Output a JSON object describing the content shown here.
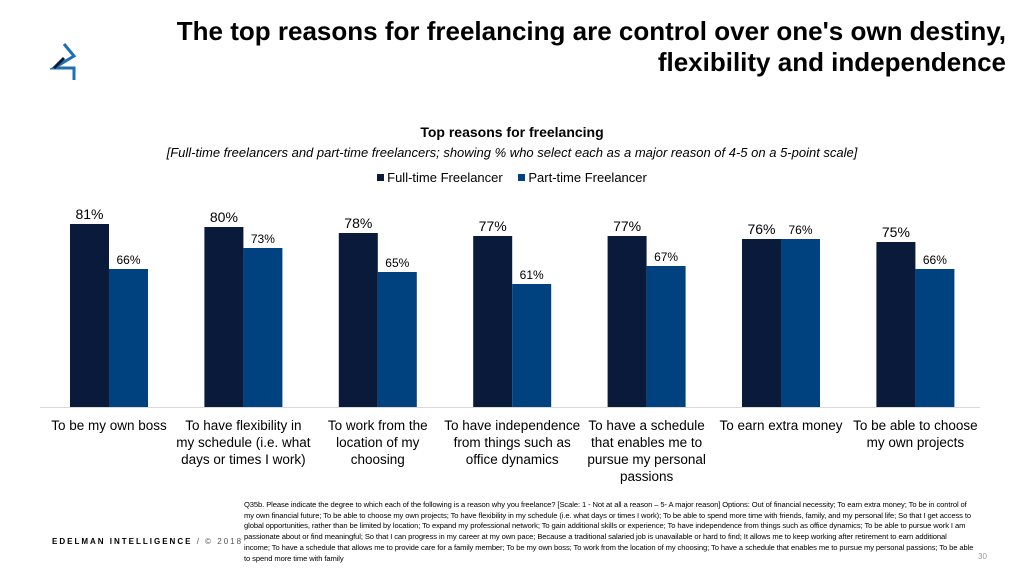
{
  "header": {
    "title": "The top reasons for freelancing are control over one's own destiny, flexibility and independence",
    "logo": "edelman-logo"
  },
  "chart_data": {
    "type": "bar",
    "title": "Top reasons for freelancing",
    "subtitle": "[Full-time freelancers and part-time freelancers; showing % who select each as a major reason of 4-5 on a 5-point scale]",
    "categories": [
      "To be my own boss",
      "To have flexibility in my schedule (i.e. what days or times I work)",
      "To work from the location of my choosing",
      "To have independence from things such as office dynamics",
      "To have a schedule that enables me to pursue my personal passions",
      "To earn extra money",
      "To be able to choose my own projects"
    ],
    "series": [
      {
        "name": "Full-time Freelancer",
        "color": "#0a1a3a",
        "values": [
          81,
          80,
          78,
          77,
          77,
          76,
          75
        ],
        "labels": [
          "81%",
          "80%",
          "78%",
          "77%",
          "77%",
          "76%",
          "75%"
        ]
      },
      {
        "name": "Part-time Freelancer",
        "color": "#00417f",
        "values": [
          66,
          73,
          65,
          61,
          67,
          76,
          66
        ],
        "labels": [
          "66%",
          "73%",
          "65%",
          "61%",
          "67%",
          "76%",
          "66%"
        ]
      }
    ],
    "legend": "top",
    "grid": false,
    "ylim": [
      20,
      100
    ]
  },
  "footer": {
    "note": "Q35b. Please indicate the degree to which each of the following is a reason why you freelance? [Scale: 1 - Not at all a reason – 5- A major reason] Options:  Out of financial necessity; To earn extra money; To be in control of my own financial future; To be able to choose my own projects; To have flexibility in my schedule (i.e. what days or times I work); To be able to spend more time with friends, family, and my personal life; So that I get access to global opportunities, rather than be limited by location; To expand my professional network; To gain additional skills or experience; To have independence from things such as office dynamics; To be able to pursue work I am passionate about or find meaningful; So that I can progress in my career at my own pace; Because a traditional salaried job is unavailable or hard to find; It allows me to keep working after retirement to earn additional income; To have a schedule that allows me to provide care for a family member; To be my own boss; To work from the location of my choosing; To have a schedule that enables me to pursue my personal passions; To be able to spend more time with family",
    "brand": "EDELMAN INTELLIGENCE",
    "copyright": "/ © 2018",
    "page_number": "30"
  }
}
